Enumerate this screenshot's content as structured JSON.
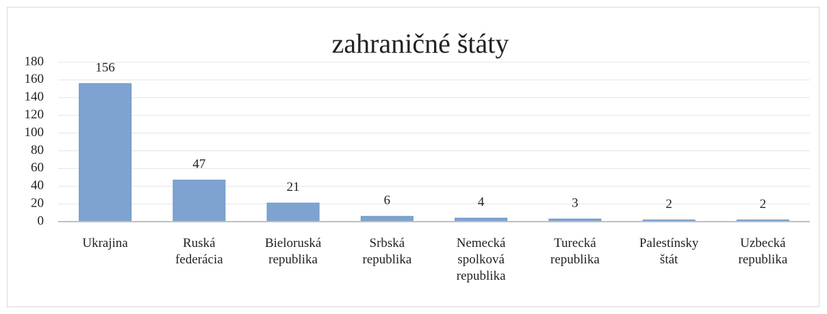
{
  "chart_data": {
    "type": "bar",
    "title": "zahraničné štáty",
    "categories": [
      "Ukrajina",
      "Ruská federácia",
      "Bieloruská republika",
      "Srbská republika",
      "Nemecká spolková republika",
      "Turecká republika",
      "Palestínsky štát",
      "Uzbecká republika"
    ],
    "values": [
      156,
      47,
      21,
      6,
      4,
      3,
      2,
      2
    ],
    "color": "#7ea3d0",
    "ylim": [
      0,
      180
    ],
    "yticks": [
      0,
      20,
      40,
      60,
      80,
      100,
      120,
      140,
      160,
      180
    ],
    "grid": true
  }
}
